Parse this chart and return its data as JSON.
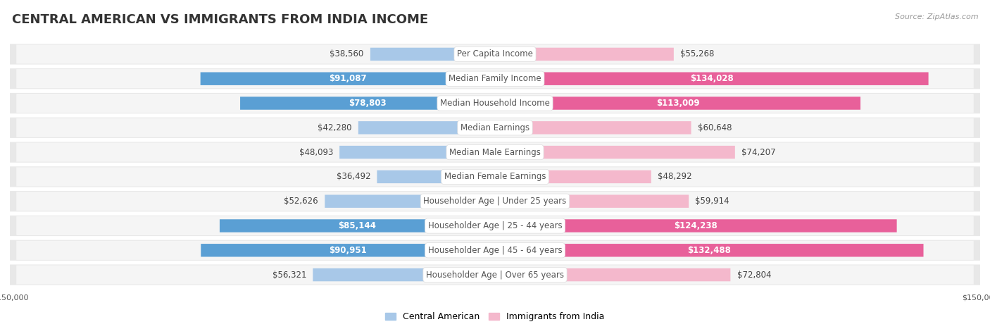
{
  "title": "CENTRAL AMERICAN VS IMMIGRANTS FROM INDIA INCOME",
  "source": "Source: ZipAtlas.com",
  "categories": [
    "Per Capita Income",
    "Median Family Income",
    "Median Household Income",
    "Median Earnings",
    "Median Male Earnings",
    "Median Female Earnings",
    "Householder Age | Under 25 years",
    "Householder Age | 25 - 44 years",
    "Householder Age | 45 - 64 years",
    "Householder Age | Over 65 years"
  ],
  "central_american": [
    38560,
    91087,
    78803,
    42280,
    48093,
    36492,
    52626,
    85144,
    90951,
    56321
  ],
  "india": [
    55268,
    134028,
    113009,
    60648,
    74207,
    48292,
    59914,
    124238,
    132488,
    72804
  ],
  "max_value": 150000,
  "color_central_light": "#a8c8e8",
  "color_central_dark": "#5a9fd4",
  "color_india_light": "#f4b8cc",
  "color_india_dark": "#e8609a",
  "bg_row": "#e8e8e8",
  "bg_row_inner": "#f5f5f5",
  "label_color_outside": "#444444",
  "center_label_color": "#555555",
  "title_color": "#333333",
  "source_color": "#999999",
  "title_fontsize": 13,
  "bar_label_fontsize": 8.5,
  "category_fontsize": 8.5,
  "legend_fontsize": 9,
  "axis_label_fontsize": 8,
  "inside_threshold_ca": 70000,
  "inside_threshold_india": 90000
}
